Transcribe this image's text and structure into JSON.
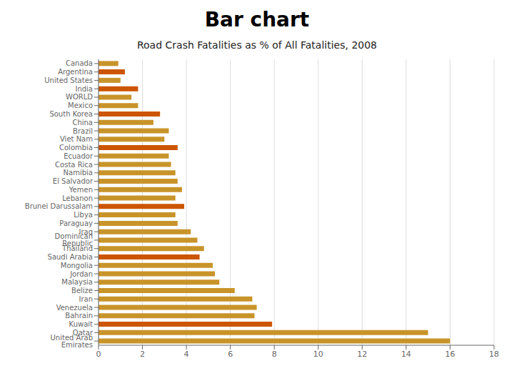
{
  "chart_data": {
    "type": "bar",
    "title": "Bar chart",
    "subtitle": "Road Crash Fatalities as % of All Fatalities, 2008",
    "orientation": "horizontal",
    "categories": [
      "Canada",
      "Argentina",
      "United States",
      "India",
      "WORLD",
      "Mexico",
      "South Korea",
      "China",
      "Brazil",
      "Viet Nam",
      "Colombia",
      "Ecuador",
      "Costa Rica",
      "Namibia",
      "El Salvador",
      "Yemen",
      "Lebanon",
      "Brunei Darussalam",
      "Libya",
      "Paraguay",
      "Iraq",
      "Dominican Republic",
      "Thailand",
      "Saudi Arabia",
      "Mongolia",
      "Jordan",
      "Malaysia",
      "Belize",
      "Iran",
      "Venezuela",
      "Bahrain",
      "Kuwait",
      "Qatar",
      "United Arab Emirates"
    ],
    "values": [
      0.9,
      1.2,
      1.0,
      1.8,
      1.5,
      1.8,
      2.8,
      2.5,
      3.2,
      3.0,
      3.6,
      3.2,
      3.3,
      3.5,
      3.6,
      3.8,
      3.5,
      3.9,
      3.5,
      3.6,
      4.2,
      4.5,
      4.8,
      4.6,
      5.2,
      5.3,
      5.5,
      6.2,
      7.0,
      7.2,
      7.1,
      7.9,
      15.0,
      16.0
    ],
    "colors": [
      "#c8942a",
      "#cc5500",
      "#c8942a",
      "#cc5500",
      "#c8942a",
      "#c8942a",
      "#cc5500",
      "#c8942a",
      "#c8942a",
      "#c8942a",
      "#cc5500",
      "#c8942a",
      "#c8942a",
      "#c8942a",
      "#c8942a",
      "#c8942a",
      "#c8942a",
      "#cc5500",
      "#c8942a",
      "#c8942a",
      "#c8942a",
      "#c8942a",
      "#c8942a",
      "#cc5500",
      "#c8942a",
      "#c8942a",
      "#c8942a",
      "#c8942a",
      "#c8942a",
      "#c8942a",
      "#c8942a",
      "#cc5500",
      "#c8942a",
      "#c8942a"
    ],
    "xlim": [
      0,
      18
    ],
    "xticks": [
      0,
      2,
      4,
      6,
      8,
      10,
      12,
      14,
      16,
      18
    ],
    "grid": true
  }
}
